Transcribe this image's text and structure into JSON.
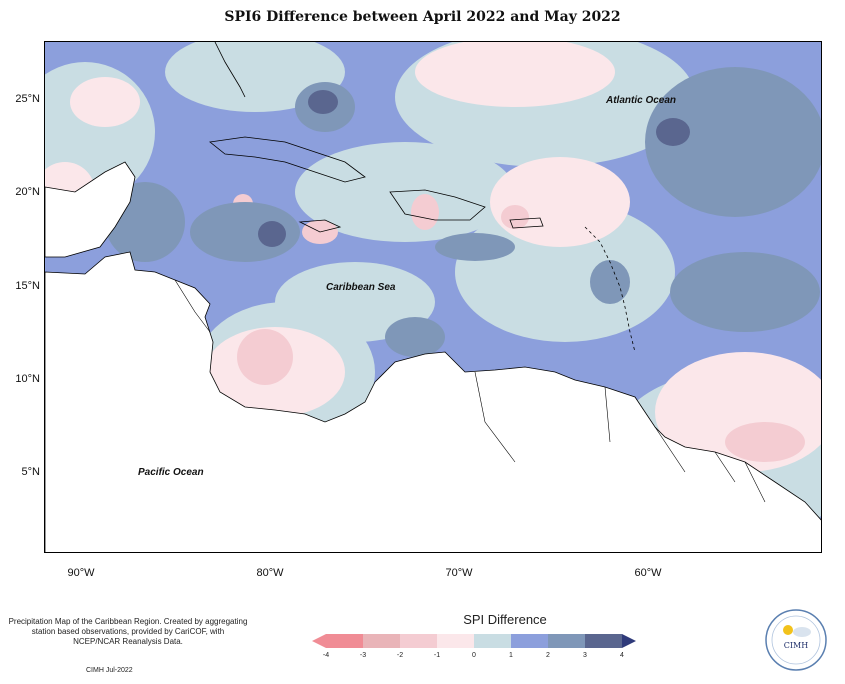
{
  "title": "SPI6 Difference between April 2022 and May 2022",
  "lat_labels": [
    "25°N",
    "20°N",
    "15°N",
    "10°N",
    "5°N"
  ],
  "lon_labels": [
    "90°W",
    "80°W",
    "70°W",
    "60°W"
  ],
  "labels": {
    "atlantic": "Atlantic Ocean",
    "caribbean": "Caribbean Sea",
    "pacific": "Pacific Ocean"
  },
  "note": "Precipitation Map of the Caribbean Region. Created by aggregating station based observations, provided by CariCOF, with NCEP/NCAR Reanalysis Data.",
  "credit": "CIMH Jul-2022",
  "legend": {
    "title": "SPI Difference",
    "ticks": [
      "-4",
      "-3",
      "-2",
      "-1",
      "0",
      "1",
      "2",
      "3",
      "4"
    ],
    "colors": [
      "#f08c95",
      "#e9b4b8",
      "#f4ccd2",
      "#fbe7ea",
      "#c9dde3",
      "#8c9fdc",
      "#7f97b8",
      "#5a668f",
      "#2f3a7a"
    ]
  },
  "logo_text": "CIMH"
}
